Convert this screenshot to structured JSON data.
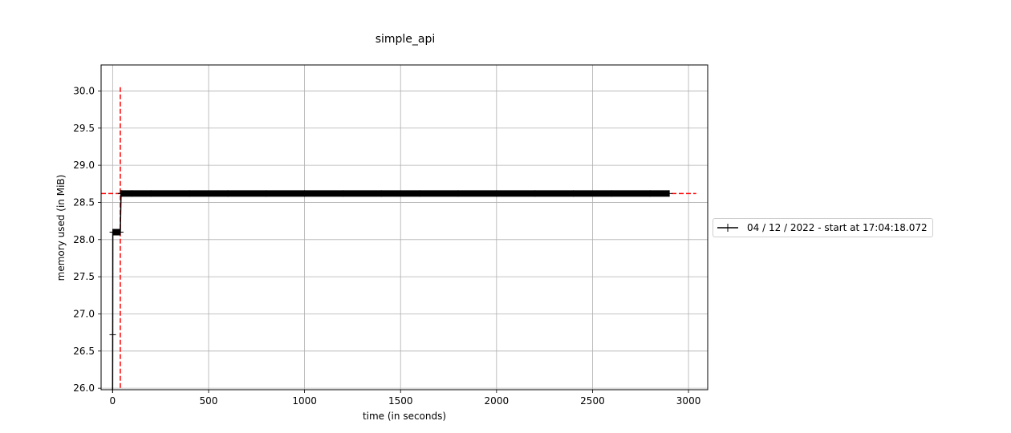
{
  "chart_data": {
    "type": "line",
    "title": "simple_api",
    "xlabel": "time (in seconds)",
    "ylabel": "memory used (in MiB)",
    "xlim": [
      -60,
      3100
    ],
    "ylim": [
      25.98,
      30.35
    ],
    "xticks": [
      0,
      500,
      1000,
      1500,
      2000,
      2500,
      3000
    ],
    "xtick_labels": [
      "0",
      "500",
      "1000",
      "1500",
      "2000",
      "2500",
      "3000"
    ],
    "yticks": [
      26.0,
      26.5,
      27.0,
      27.5,
      28.0,
      28.5,
      29.0,
      29.5,
      30.0
    ],
    "ytick_labels": [
      "26.0",
      "26.5",
      "27.0",
      "27.5",
      "28.0",
      "28.5",
      "29.0",
      "29.5",
      "30.0"
    ],
    "grid": true,
    "legend_position": "right",
    "series": [
      {
        "name": "04 / 12 / 2022 - start at 17:04:18.072",
        "color": "#000000",
        "marker": "+",
        "x": [
          0,
          0.5,
          1,
          2,
          4,
          6,
          8,
          12,
          16,
          20,
          24,
          28,
          32,
          36,
          40,
          44,
          48,
          100,
          200,
          400,
          600,
          800,
          1000,
          1200,
          1400,
          1600,
          1800,
          2000,
          2200,
          2400,
          2600,
          2800,
          2900
        ],
        "y": [
          25.98,
          26.72,
          28.1,
          28.1,
          28.1,
          28.1,
          28.1,
          28.1,
          28.1,
          28.1,
          28.1,
          28.1,
          28.1,
          28.1,
          28.1,
          28.62,
          28.62,
          28.62,
          28.62,
          28.62,
          28.62,
          28.62,
          28.62,
          28.62,
          28.62,
          28.62,
          28.62,
          28.62,
          28.62,
          28.62,
          28.62,
          28.62,
          28.62
        ]
      }
    ],
    "reference_lines": [
      {
        "orientation": "vertical",
        "x": 40,
        "y_range": [
          25.98,
          30.05
        ],
        "color": "#ff0000",
        "style": "dashed"
      },
      {
        "orientation": "horizontal",
        "y": 28.62,
        "x_range": [
          -60,
          3040
        ],
        "color": "#ff0000",
        "style": "dashed"
      }
    ]
  }
}
